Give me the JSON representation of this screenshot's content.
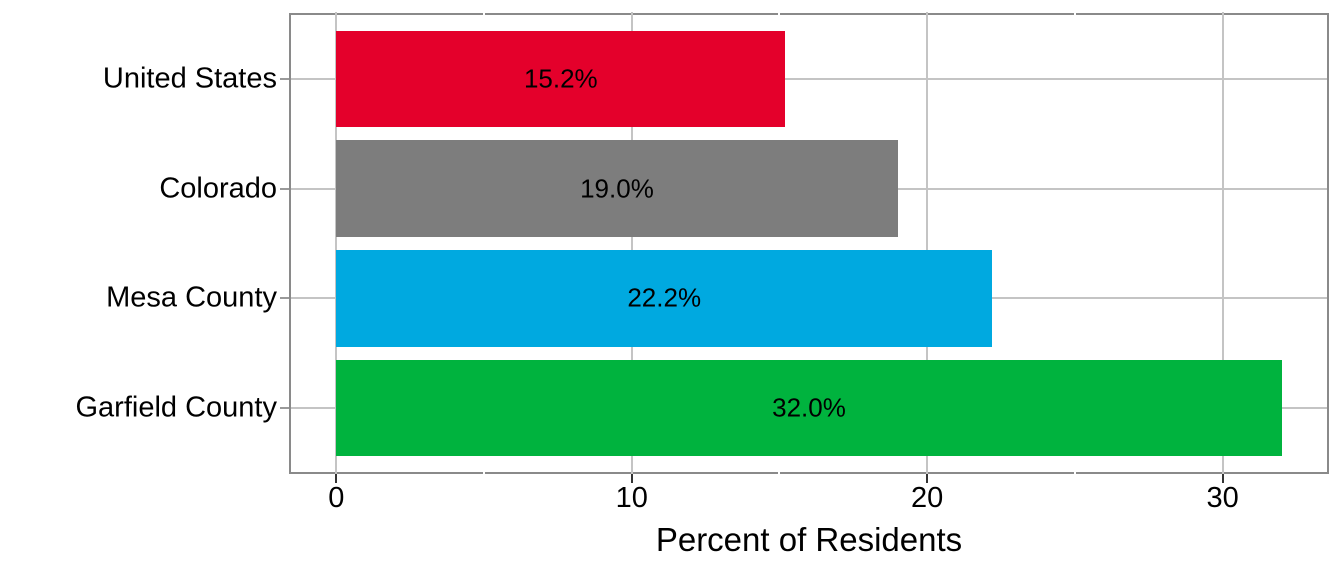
{
  "chart_data": {
    "type": "bar",
    "orientation": "horizontal",
    "title": "",
    "xlabel": "Percent of Residents",
    "ylabel": "",
    "categories": [
      "United States",
      "Colorado",
      "Mesa County",
      "Garfield County"
    ],
    "values": [
      15.2,
      19.0,
      22.2,
      32.0
    ],
    "bar_labels": [
      "15.2%",
      "19.0%",
      "22.2%",
      "32.0%"
    ],
    "bar_colors": [
      "#E4002B",
      "#7D7D7D",
      "#00A9E0",
      "#00B33E"
    ],
    "xlim": [
      -1.6,
      33.6
    ],
    "x_major_ticks": [
      0,
      10,
      20,
      30
    ],
    "x_tick_labels": [
      "0",
      "10",
      "20",
      "30"
    ],
    "x_minor_ticks": [
      5,
      15,
      25
    ],
    "grid": true,
    "legend": "none"
  },
  "styles": {
    "background_color": "#FFFFFF",
    "panel_border_color": "#8A8A8A",
    "grid_major_color": "#C4C4C4",
    "grid_minor_color": "#FFFFFF",
    "x_tick_color": "#333333",
    "y_tick_color": "#999999",
    "text_color": "#000000"
  }
}
